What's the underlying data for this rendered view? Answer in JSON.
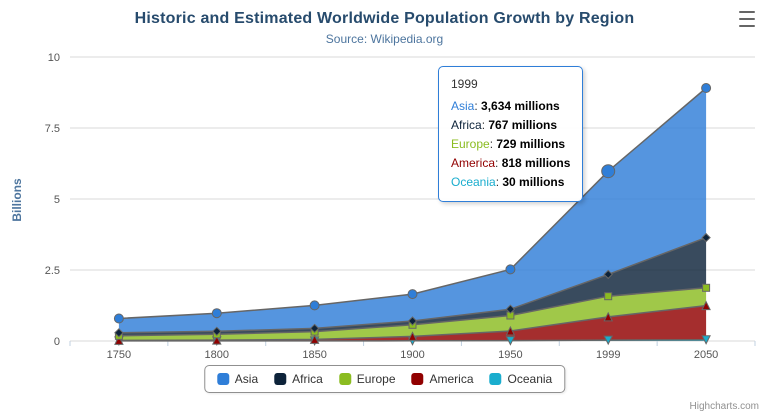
{
  "page": {
    "credits": "Highcharts.com"
  },
  "chart_data": {
    "type": "area",
    "stacking": "normal",
    "title": "Historic and Estimated Worldwide Population Growth by Region",
    "subtitle": "Source: Wikipedia.org",
    "xlabel": "",
    "ylabel": "Billions",
    "unit": "millions",
    "categories": [
      "1750",
      "1800",
      "1850",
      "1900",
      "1950",
      "1999",
      "2050"
    ],
    "yticks": [
      "0",
      "2.5",
      "5",
      "7.5",
      "10"
    ],
    "ylim": [
      0,
      10
    ],
    "grid": true,
    "legend_position": "bottom",
    "line_color": "#666666",
    "series": [
      {
        "name": "Asia",
        "color": "#2f7ed8",
        "marker": "circle",
        "values": [
          502,
          635,
          809,
          947,
          1402,
          3634,
          5268
        ]
      },
      {
        "name": "Africa",
        "color": "#0d233a",
        "marker": "diamond",
        "values": [
          106,
          107,
          111,
          133,
          221,
          767,
          1766
        ]
      },
      {
        "name": "Europe",
        "color": "#8bbc21",
        "marker": "square",
        "values": [
          163,
          203,
          276,
          408,
          547,
          729,
          628
        ]
      },
      {
        "name": "America",
        "color": "#910000",
        "marker": "triangle",
        "values": [
          18,
          31,
          54,
          156,
          339,
          818,
          1201
        ]
      },
      {
        "name": "Oceania",
        "color": "#1aadce",
        "marker": "triangle-down",
        "values": [
          2,
          2,
          2,
          6,
          13,
          30,
          46
        ]
      }
    ],
    "hover": {
      "series": "Asia",
      "category": "1999"
    }
  },
  "tooltip": {
    "header": "1999",
    "border_color": "#2f7ed8",
    "rows": [
      {
        "name": "Asia",
        "color": "#2f7ed8",
        "value": "3,634 millions"
      },
      {
        "name": "Africa",
        "color": "#0d233a",
        "value": "767 millions"
      },
      {
        "name": "Europe",
        "color": "#8bbc21",
        "value": "729 millions"
      },
      {
        "name": "America",
        "color": "#910000",
        "value": "818 millions"
      },
      {
        "name": "Oceania",
        "color": "#1aadce",
        "value": "30 millions"
      }
    ]
  }
}
